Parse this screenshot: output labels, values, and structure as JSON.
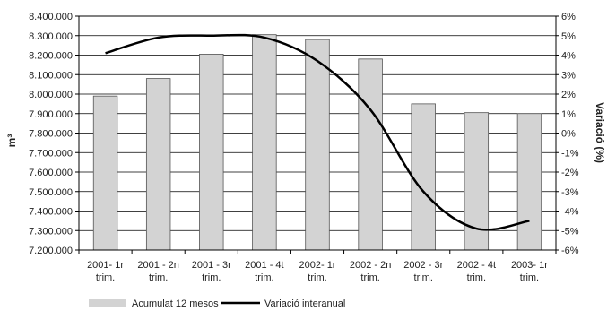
{
  "chart_data": {
    "type": "bar",
    "categories": [
      [
        "2001- 1r",
        "trim."
      ],
      [
        "2001 - 2n",
        "trim."
      ],
      [
        "2001 - 3r",
        "trim."
      ],
      [
        "2001 - 4t",
        "trim."
      ],
      [
        "2002- 1r",
        "trim."
      ],
      [
        "2002 - 2n",
        "trim."
      ],
      [
        "2002 - 3r",
        "trim."
      ],
      [
        "2002 - 4t",
        "trim."
      ],
      [
        "2003- 1r",
        "trim."
      ]
    ],
    "series": [
      {
        "name": "Acumulat 12 mesos",
        "type": "bar",
        "axis": "left",
        "color": "#d3d3d3",
        "values": [
          7990000,
          8080000,
          8205000,
          8305000,
          8280000,
          8180000,
          7950000,
          7905000,
          7900000
        ]
      },
      {
        "name": "Variació interanual",
        "type": "line",
        "axis": "right",
        "color": "#000000",
        "values": [
          4.1,
          4.9,
          5.0,
          4.9,
          3.7,
          1.2,
          -3.0,
          -4.9,
          -4.5
        ]
      }
    ],
    "ylabel": "m³",
    "ylabel_right": "Variació (%)",
    "ylim": [
      7200000,
      8400000
    ],
    "ylim_right": [
      -6,
      6
    ],
    "yticks": [
      "7.200.000",
      "7.300.000",
      "7.400.000",
      "7.500.000",
      "7.600.000",
      "7.700.000",
      "7.800.000",
      "7.900.000",
      "8.000.000",
      "8.100.000",
      "8.200.000",
      "8.300.000",
      "8.400.000"
    ],
    "yticks_right": [
      "-6%",
      "-5%",
      "-4%",
      "-3%",
      "-2%",
      "-1%",
      "0%",
      "1%",
      "2%",
      "3%",
      "4%",
      "5%",
      "6%"
    ],
    "grid": true,
    "legend_position": "bottom"
  }
}
